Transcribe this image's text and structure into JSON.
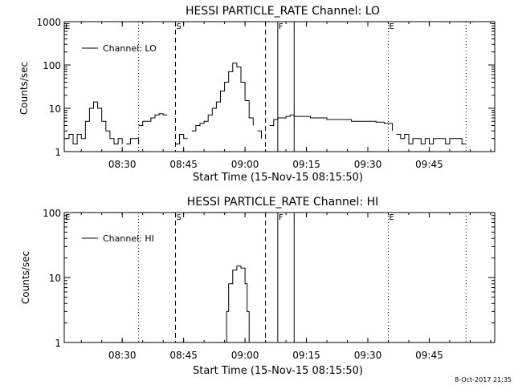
{
  "footer_timestamp": "8-Oct-2017 21:35",
  "chart_data": [
    {
      "type": "line",
      "title": "HESSI PARTICLE_RATE Channel: LO",
      "xlabel": "Start Time (15-Nov-15 08:15:50)",
      "ylabel": "Counts/sec",
      "yscale": "log",
      "ylim": [
        1,
        1000
      ],
      "xlim": [
        "08:15:50",
        "10:01:00"
      ],
      "x_ticks": [
        "08:30",
        "08:45",
        "09:00",
        "09:15",
        "09:30",
        "09:45"
      ],
      "y_ticks": [
        "1",
        "10",
        "100",
        "1000"
      ],
      "legend": {
        "position": "top-left",
        "entries": [
          "Channel: LO"
        ]
      },
      "markers": [
        {
          "label": "E",
          "time": "08:15:50",
          "style": "dotted"
        },
        {
          "label": "",
          "time": "08:34:00",
          "style": "dotted"
        },
        {
          "label": "S",
          "time": "08:43:00",
          "style": "dashed"
        },
        {
          "label": "",
          "time": "09:05:00",
          "style": "dashed"
        },
        {
          "label": "F",
          "time": "09:08:00",
          "style": "solid"
        },
        {
          "label": "",
          "time": "09:12:00",
          "style": "solid"
        },
        {
          "label": "E",
          "time": "09:35:00",
          "style": "dotted"
        },
        {
          "label": "",
          "time": "09:54:00",
          "style": "dotted"
        }
      ],
      "series": [
        {
          "name": "Channel: LO",
          "segments": [
            {
              "t": [
                "08:15:50",
                "08:17:00",
                "08:18:00",
                "08:19:00",
                "08:20:00",
                "08:21:00",
                "08:22:00",
                "08:23:00",
                "08:24:00",
                "08:25:00",
                "08:26:00",
                "08:27:00",
                "08:28:00",
                "08:29:00",
                "08:30:00"
              ],
              "v": [
                2,
                2.5,
                1.5,
                2.5,
                2,
                5,
                10,
                14,
                10,
                5,
                3,
                2,
                1.5,
                2,
                1.5
              ]
            },
            {
              "t": [
                "08:31:00",
                "08:32:00",
                "08:33:00",
                "08:34:00"
              ],
              "v": [
                1.5,
                2,
                2,
                1.5
              ]
            },
            {
              "t": [
                "08:34:00",
                "08:35:00",
                "08:36:00",
                "08:37:00",
                "08:38:00",
                "08:39:00",
                "08:40:00",
                "08:41:00"
              ],
              "v": [
                4,
                5,
                5,
                6,
                7,
                7.5,
                7,
                7
              ]
            },
            {
              "t": [
                "08:43:00",
                "08:44:00",
                "08:45:00",
                "08:46:00"
              ],
              "v": [
                1.5,
                2.5,
                2,
                2
              ]
            },
            {
              "t": [
                "08:47:00",
                "08:48:00",
                "08:49:00",
                "08:50:00",
                "08:51:00",
                "08:52:00",
                "08:53:00",
                "08:54:00",
                "08:55:00",
                "08:56:00",
                "08:57:00",
                "08:58:00",
                "08:59:00",
                "09:00:00",
                "09:01:00",
                "09:02:00"
              ],
              "v": [
                3,
                4,
                4.5,
                5,
                7,
                10,
                14,
                25,
                40,
                70,
                110,
                90,
                40,
                15,
                6,
                4
              ]
            },
            {
              "t": [
                "09:03:00",
                "09:04:00"
              ],
              "v": [
                3,
                2
              ]
            },
            {
              "t": [
                "09:06:00",
                "09:07:00",
                "09:08:00",
                "09:09:00",
                "09:10:00",
                "09:11:00",
                "09:12:00",
                "09:14:00",
                "09:16:00",
                "09:18:00",
                "09:20:00",
                "09:22:00",
                "09:24:00",
                "09:26:00",
                "09:28:00",
                "09:30:00",
                "09:32:00",
                "09:34:00",
                "09:36:00"
              ],
              "v": [
                4,
                5.5,
                6,
                6,
                6.5,
                7,
                6.5,
                6.5,
                6,
                6,
                5.5,
                5.5,
                5.5,
                5,
                5,
                5,
                4.8,
                4.5,
                3
              ]
            },
            {
              "t": [
                "09:37:00",
                "09:38:00",
                "09:39:00",
                "09:40:00",
                "09:41:00",
                "09:42:00",
                "09:43:00",
                "09:44:00",
                "09:45:00",
                "09:46:00",
                "09:47:00",
                "09:48:00",
                "09:49:00",
                "09:50:00",
                "09:51:00",
                "09:52:00",
                "09:53:00",
                "09:54:00"
              ],
              "v": [
                2.5,
                2,
                2.5,
                1.5,
                2,
                2,
                1.5,
                2,
                1.5,
                2,
                2,
                2,
                1.5,
                2,
                2,
                2,
                1.5,
                1.5
              ]
            }
          ]
        }
      ]
    },
    {
      "type": "line",
      "title": "HESSI PARTICLE_RATE Channel: HI",
      "xlabel": "Start Time (15-Nov-15 08:15:50)",
      "ylabel": "Counts/sec",
      "yscale": "log",
      "ylim": [
        1,
        100
      ],
      "xlim": [
        "08:15:50",
        "10:01:00"
      ],
      "x_ticks": [
        "08:30",
        "08:45",
        "09:00",
        "09:15",
        "09:30",
        "09:45"
      ],
      "y_ticks": [
        "1",
        "10",
        "100"
      ],
      "legend": {
        "position": "top-left",
        "entries": [
          "Channel: HI"
        ]
      },
      "markers": [
        {
          "label": "E",
          "time": "08:15:50",
          "style": "dotted"
        },
        {
          "label": "",
          "time": "08:34:00",
          "style": "dotted"
        },
        {
          "label": "S",
          "time": "08:43:00",
          "style": "dashed"
        },
        {
          "label": "",
          "time": "09:05:00",
          "style": "dashed"
        },
        {
          "label": "F",
          "time": "09:08:00",
          "style": "solid"
        },
        {
          "label": "",
          "time": "09:12:00",
          "style": "solid"
        },
        {
          "label": "E",
          "time": "09:35:00",
          "style": "dotted"
        },
        {
          "label": "",
          "time": "09:54:00",
          "style": "dotted"
        }
      ],
      "series": [
        {
          "name": "Channel: HI",
          "segments": [
            {
              "t": [
                "08:55:00",
                "08:55:30",
                "08:56:00",
                "08:57:00",
                "08:58:00",
                "08:59:00",
                "09:00:00",
                "09:00:30",
                "09:01:00"
              ],
              "v": [
                1,
                3,
                8,
                13,
                15,
                14,
                8,
                3,
                1
              ]
            }
          ]
        }
      ]
    }
  ]
}
